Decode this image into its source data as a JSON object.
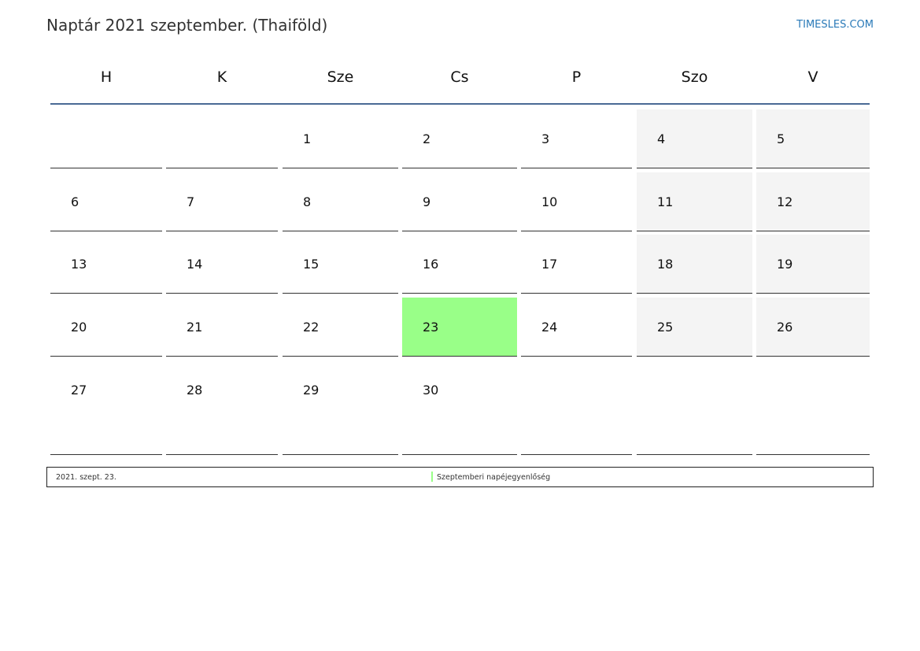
{
  "title": "Naptár 2021 szeptember. (Thaiföld)",
  "brand": "TIMESLES.COM",
  "weekdays": [
    "H",
    "K",
    "Sze",
    "Cs",
    "P",
    "Szo",
    "V"
  ],
  "weeks": [
    [
      "",
      "",
      "1",
      "2",
      "3",
      "4",
      "5"
    ],
    [
      "6",
      "7",
      "8",
      "9",
      "10",
      "11",
      "12"
    ],
    [
      "13",
      "14",
      "15",
      "16",
      "17",
      "18",
      "19"
    ],
    [
      "20",
      "21",
      "22",
      "23",
      "24",
      "25",
      "26"
    ],
    [
      "27",
      "28",
      "29",
      "30",
      "",
      "",
      ""
    ]
  ],
  "highlighted_day": "23",
  "colors": {
    "weekend": "#f4f4f4",
    "highlight": "#99ff88",
    "header_line": "#4a6a95",
    "brand": "#2a7ab8"
  },
  "legend": {
    "date": "2021. szept. 23.",
    "event": "Szeptemberi napéjegyenlőség",
    "color": "#99ff88"
  }
}
